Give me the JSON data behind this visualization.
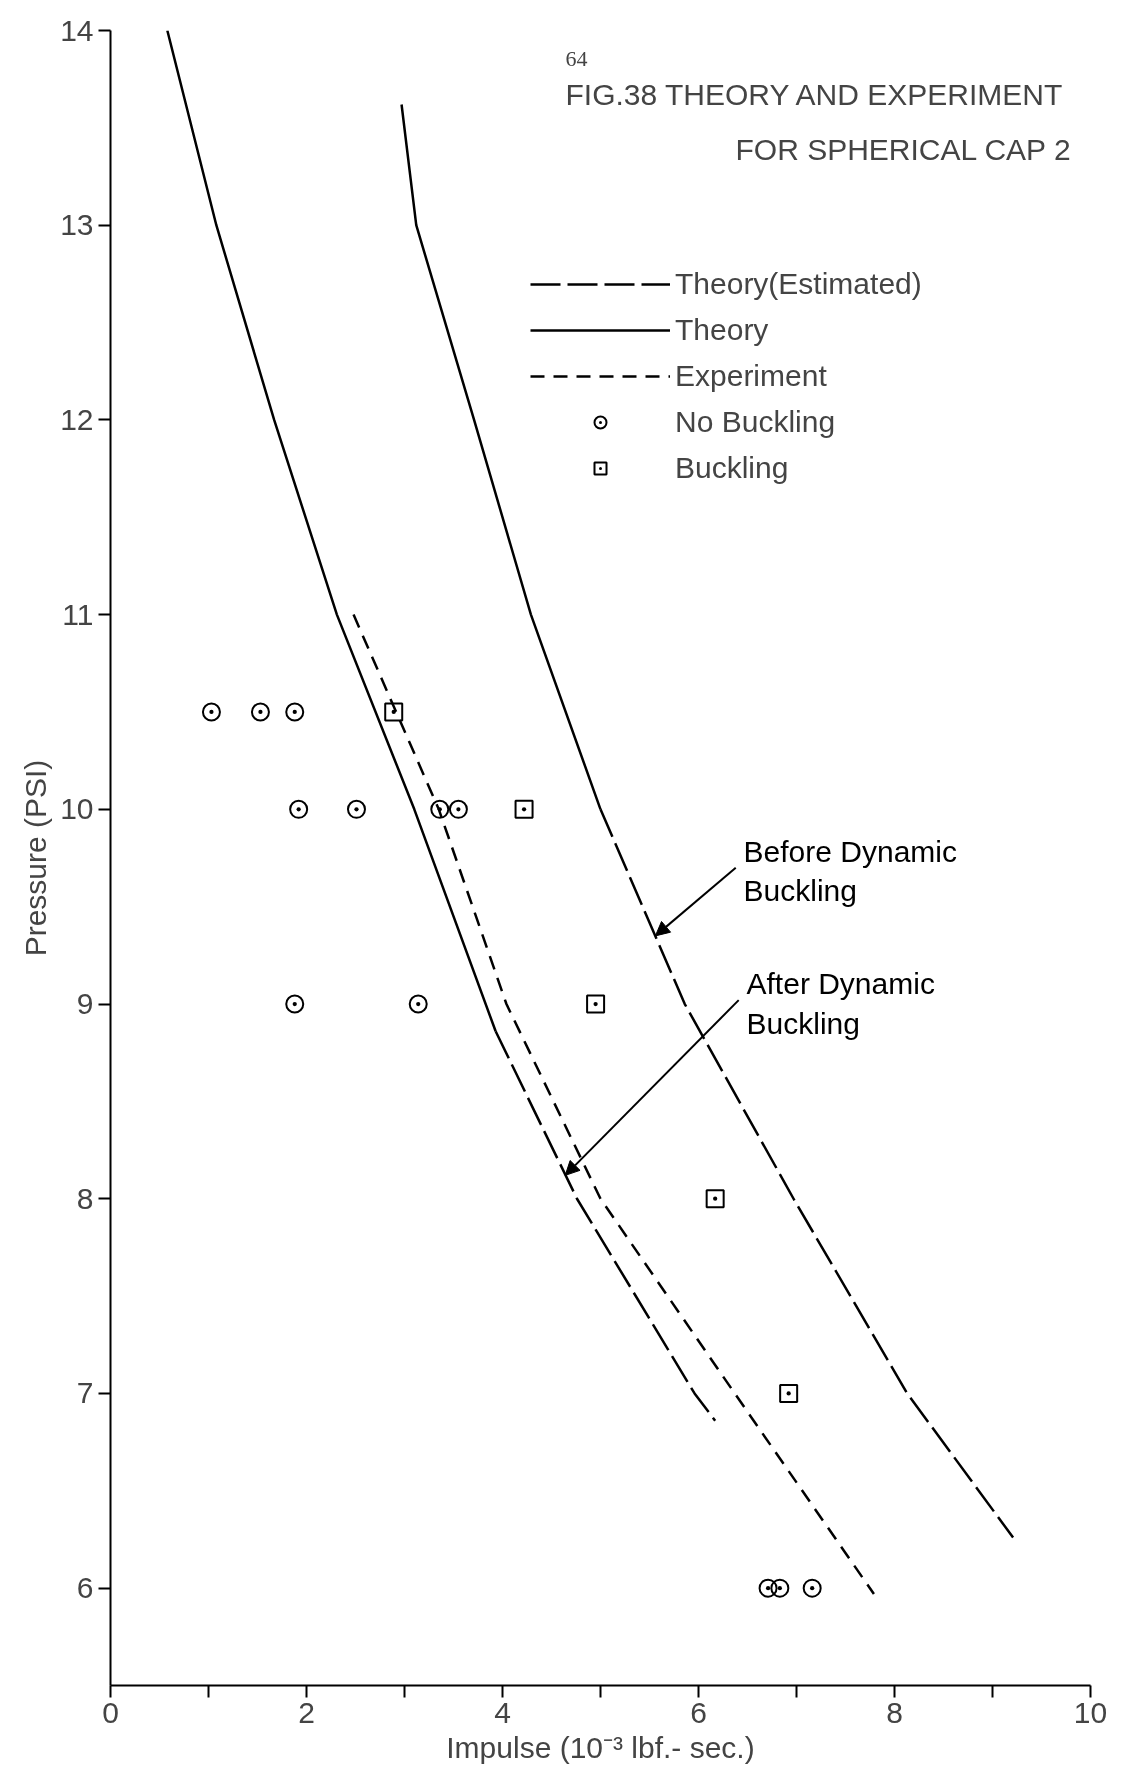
{
  "chart_data": {
    "type": "line",
    "title": "FIG.38 THEORY AND EXPERIMENT",
    "subtitle": "FOR SPHERICAL CAP 2",
    "xlabel": "Impulse (10⁻³ lbf.- sec.)",
    "ylabel": "Pressure (PSI)",
    "xlim": [
      0,
      10
    ],
    "ylim": [
      5.5,
      14
    ],
    "xticks": [
      0,
      {
        "value": 1,
        "label": null
      },
      2,
      {
        "value": 3,
        "label": null
      },
      4,
      {
        "value": 5,
        "label": null
      },
      6,
      {
        "value": 7,
        "label": null
      },
      8,
      {
        "value": 9,
        "label": null
      },
      10
    ],
    "yticks": [
      6,
      7,
      8,
      9,
      10,
      11,
      12,
      13,
      14
    ],
    "grid": false,
    "legend": "top right",
    "series": [
      {
        "name": "Theory(Estimated)",
        "line_style": "long_dashed",
        "color": "#000000",
        "x": [
          5.0,
          5.86,
          6.97,
          8.13,
          9.21
        ],
        "values": [
          10,
          9,
          8,
          7,
          6.26
        ]
      },
      {
        "name": "Theory",
        "line_style": "solid",
        "color": "#000000",
        "x": [
          0.58,
          1.08,
          1.67,
          2.31,
          3.1,
          3.93
        ],
        "values": [
          14,
          13,
          12,
          11,
          10,
          8.86
        ]
      },
      {
        "name": "Experiment",
        "line_style": "dashed",
        "color": "#000000",
        "x": [
          2.48,
          3.35,
          4.04,
          5.0,
          6.37,
          7.79
        ],
        "values": [
          11,
          10,
          9,
          8,
          7,
          5.97
        ]
      },
      {
        "name": "No Buckling",
        "type": "scatter",
        "marker": "circle",
        "color": "#000000",
        "x": [
          1.03,
          1.53,
          1.88,
          1.92,
          2.51,
          3.36,
          3.55,
          1.88,
          3.14,
          6.71,
          6.83,
          7.16
        ],
        "values": [
          10.5,
          10.5,
          10.5,
          10,
          10,
          10,
          10,
          9,
          9,
          6,
          6,
          6
        ]
      },
      {
        "name": "Buckling",
        "type": "scatter",
        "marker": "square",
        "color": "#000000",
        "x": [
          2.89,
          4.22,
          4.95,
          6.17,
          6.92
        ],
        "values": [
          10.5,
          10,
          9,
          8,
          7
        ]
      },
      {
        "line_style": "long_dashed",
        "color": "#000000",
        "x": [
          3.93,
          4.76,
          5.96,
          6.17
        ],
        "values": [
          8.86,
          8,
          7,
          6.86
        ]
      },
      {
        "line_style": "solid",
        "color": "#000000",
        "x": [
          2.97,
          3.12,
          3.71,
          4.29,
          5.0
        ],
        "values": [
          13.62,
          13,
          12,
          11,
          10
        ]
      }
    ],
    "annotations": [
      "64",
      {
        "text": "Before Dynamic\nBuckling",
        "x": 5.56,
        "y": 9.35
      },
      {
        "text": "After Dynamic\nBuckling",
        "x": 4.64,
        "y": 8.12
      }
    ]
  }
}
